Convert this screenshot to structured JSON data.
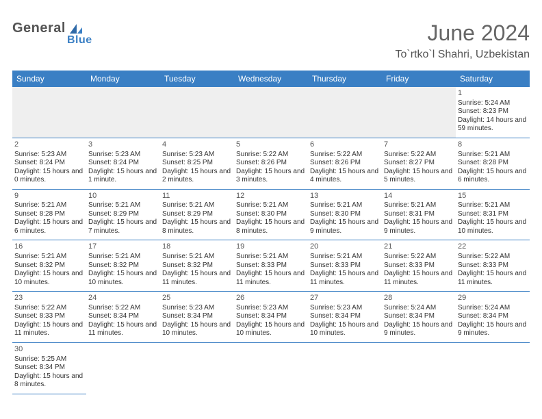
{
  "brand": {
    "main": "General",
    "sub": "Blue"
  },
  "title": "June 2024",
  "location": "To`rtko`l Shahri, Uzbekistan",
  "colors": {
    "header_bg": "#3a7fc4",
    "header_fg": "#ffffff",
    "border": "#3a7fc4",
    "blank_bg": "#efefef",
    "text": "#333333",
    "title_color": "#666666"
  },
  "weekdays": [
    "Sunday",
    "Monday",
    "Tuesday",
    "Wednesday",
    "Thursday",
    "Friday",
    "Saturday"
  ],
  "weeks": [
    [
      {
        "blank": true
      },
      {
        "blank": true
      },
      {
        "blank": true
      },
      {
        "blank": true
      },
      {
        "blank": true
      },
      {
        "blank": true
      },
      {
        "day": "1",
        "sunrise": "Sunrise: 5:24 AM",
        "sunset": "Sunset: 8:23 PM",
        "daylight": "Daylight: 14 hours and 59 minutes."
      }
    ],
    [
      {
        "day": "2",
        "sunrise": "Sunrise: 5:23 AM",
        "sunset": "Sunset: 8:24 PM",
        "daylight": "Daylight: 15 hours and 0 minutes."
      },
      {
        "day": "3",
        "sunrise": "Sunrise: 5:23 AM",
        "sunset": "Sunset: 8:24 PM",
        "daylight": "Daylight: 15 hours and 1 minute."
      },
      {
        "day": "4",
        "sunrise": "Sunrise: 5:23 AM",
        "sunset": "Sunset: 8:25 PM",
        "daylight": "Daylight: 15 hours and 2 minutes."
      },
      {
        "day": "5",
        "sunrise": "Sunrise: 5:22 AM",
        "sunset": "Sunset: 8:26 PM",
        "daylight": "Daylight: 15 hours and 3 minutes."
      },
      {
        "day": "6",
        "sunrise": "Sunrise: 5:22 AM",
        "sunset": "Sunset: 8:26 PM",
        "daylight": "Daylight: 15 hours and 4 minutes."
      },
      {
        "day": "7",
        "sunrise": "Sunrise: 5:22 AM",
        "sunset": "Sunset: 8:27 PM",
        "daylight": "Daylight: 15 hours and 5 minutes."
      },
      {
        "day": "8",
        "sunrise": "Sunrise: 5:21 AM",
        "sunset": "Sunset: 8:28 PM",
        "daylight": "Daylight: 15 hours and 6 minutes."
      }
    ],
    [
      {
        "day": "9",
        "sunrise": "Sunrise: 5:21 AM",
        "sunset": "Sunset: 8:28 PM",
        "daylight": "Daylight: 15 hours and 6 minutes."
      },
      {
        "day": "10",
        "sunrise": "Sunrise: 5:21 AM",
        "sunset": "Sunset: 8:29 PM",
        "daylight": "Daylight: 15 hours and 7 minutes."
      },
      {
        "day": "11",
        "sunrise": "Sunrise: 5:21 AM",
        "sunset": "Sunset: 8:29 PM",
        "daylight": "Daylight: 15 hours and 8 minutes."
      },
      {
        "day": "12",
        "sunrise": "Sunrise: 5:21 AM",
        "sunset": "Sunset: 8:30 PM",
        "daylight": "Daylight: 15 hours and 8 minutes."
      },
      {
        "day": "13",
        "sunrise": "Sunrise: 5:21 AM",
        "sunset": "Sunset: 8:30 PM",
        "daylight": "Daylight: 15 hours and 9 minutes."
      },
      {
        "day": "14",
        "sunrise": "Sunrise: 5:21 AM",
        "sunset": "Sunset: 8:31 PM",
        "daylight": "Daylight: 15 hours and 9 minutes."
      },
      {
        "day": "15",
        "sunrise": "Sunrise: 5:21 AM",
        "sunset": "Sunset: 8:31 PM",
        "daylight": "Daylight: 15 hours and 10 minutes."
      }
    ],
    [
      {
        "day": "16",
        "sunrise": "Sunrise: 5:21 AM",
        "sunset": "Sunset: 8:32 PM",
        "daylight": "Daylight: 15 hours and 10 minutes."
      },
      {
        "day": "17",
        "sunrise": "Sunrise: 5:21 AM",
        "sunset": "Sunset: 8:32 PM",
        "daylight": "Daylight: 15 hours and 10 minutes."
      },
      {
        "day": "18",
        "sunrise": "Sunrise: 5:21 AM",
        "sunset": "Sunset: 8:32 PM",
        "daylight": "Daylight: 15 hours and 11 minutes."
      },
      {
        "day": "19",
        "sunrise": "Sunrise: 5:21 AM",
        "sunset": "Sunset: 8:33 PM",
        "daylight": "Daylight: 15 hours and 11 minutes."
      },
      {
        "day": "20",
        "sunrise": "Sunrise: 5:21 AM",
        "sunset": "Sunset: 8:33 PM",
        "daylight": "Daylight: 15 hours and 11 minutes."
      },
      {
        "day": "21",
        "sunrise": "Sunrise: 5:22 AM",
        "sunset": "Sunset: 8:33 PM",
        "daylight": "Daylight: 15 hours and 11 minutes."
      },
      {
        "day": "22",
        "sunrise": "Sunrise: 5:22 AM",
        "sunset": "Sunset: 8:33 PM",
        "daylight": "Daylight: 15 hours and 11 minutes."
      }
    ],
    [
      {
        "day": "23",
        "sunrise": "Sunrise: 5:22 AM",
        "sunset": "Sunset: 8:33 PM",
        "daylight": "Daylight: 15 hours and 11 minutes."
      },
      {
        "day": "24",
        "sunrise": "Sunrise: 5:22 AM",
        "sunset": "Sunset: 8:34 PM",
        "daylight": "Daylight: 15 hours and 11 minutes."
      },
      {
        "day": "25",
        "sunrise": "Sunrise: 5:23 AM",
        "sunset": "Sunset: 8:34 PM",
        "daylight": "Daylight: 15 hours and 10 minutes."
      },
      {
        "day": "26",
        "sunrise": "Sunrise: 5:23 AM",
        "sunset": "Sunset: 8:34 PM",
        "daylight": "Daylight: 15 hours and 10 minutes."
      },
      {
        "day": "27",
        "sunrise": "Sunrise: 5:23 AM",
        "sunset": "Sunset: 8:34 PM",
        "daylight": "Daylight: 15 hours and 10 minutes."
      },
      {
        "day": "28",
        "sunrise": "Sunrise: 5:24 AM",
        "sunset": "Sunset: 8:34 PM",
        "daylight": "Daylight: 15 hours and 9 minutes."
      },
      {
        "day": "29",
        "sunrise": "Sunrise: 5:24 AM",
        "sunset": "Sunset: 8:34 PM",
        "daylight": "Daylight: 15 hours and 9 minutes."
      }
    ],
    [
      {
        "day": "30",
        "sunrise": "Sunrise: 5:25 AM",
        "sunset": "Sunset: 8:34 PM",
        "daylight": "Daylight: 15 hours and 8 minutes."
      },
      {
        "trailing": true
      },
      {
        "trailing": true
      },
      {
        "trailing": true
      },
      {
        "trailing": true
      },
      {
        "trailing": true
      },
      {
        "trailing": true
      }
    ]
  ]
}
